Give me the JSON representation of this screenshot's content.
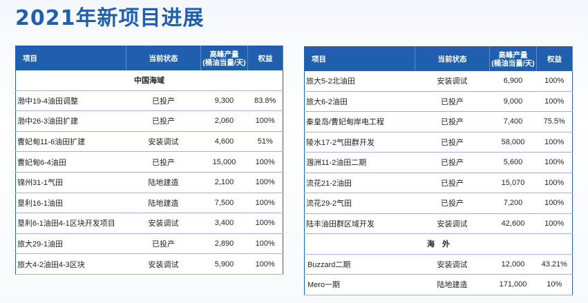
{
  "title": "2021年新项目进展",
  "headers": [
    "项目",
    "当前状态",
    "高峰产量\n(桶油当量/天)",
    "权益"
  ],
  "left_table": {
    "section": "中国海域",
    "rows": [
      {
        "name": "渤中19-4油田调整",
        "status": "已投产",
        "output": "9,300",
        "equity": "83.8%"
      },
      {
        "name": "渤中26-3油田扩建",
        "status": "已投产",
        "output": "2,060",
        "equity": "100%"
      },
      {
        "name": "曹妃甸11-6油田扩建",
        "status": "安装调试",
        "output": "4,600",
        "equity": "51%"
      },
      {
        "name": "曹妃甸6-4油田",
        "status": "已投产",
        "output": "15,000",
        "equity": "100%"
      },
      {
        "name": "锦州31-1气田",
        "status": "陆地建造",
        "output": "2,100",
        "equity": "100%"
      },
      {
        "name": "垦利16-1油田",
        "status": "陆地建造",
        "output": "7,500",
        "equity": "100%"
      },
      {
        "name": "垦利6-1油田4-1区块开发项目",
        "status": "安装调试",
        "output": "3,400",
        "equity": "100%"
      },
      {
        "name": "旅大29-1油田",
        "status": "已投产",
        "output": "2,890",
        "equity": "100%"
      },
      {
        "name": "旅大4-2油田4-3区块",
        "status": "安装调试",
        "output": "5,900",
        "equity": "100%"
      }
    ]
  },
  "right_table": {
    "rows": [
      {
        "name": "旅大5-2北油田",
        "status": "安装调试",
        "output": "6,900",
        "equity": "100%"
      },
      {
        "name": "旅大6-2油田",
        "status": "已投产",
        "output": "9,000",
        "equity": "100%"
      },
      {
        "name": "秦皇岛/曹妃甸岸电工程",
        "status": "已投产",
        "output": "7,400",
        "equity": "75.5%"
      },
      {
        "name": "陵水17-2气田群开发",
        "status": "已投产",
        "output": "58,000",
        "equity": "100%"
      },
      {
        "name": "涠洲11-2油田二期",
        "status": "已投产",
        "output": "5,600",
        "equity": "100%"
      },
      {
        "name": "流花21-2油田",
        "status": "已投产",
        "output": "15,070",
        "equity": "100%"
      },
      {
        "name": "流花29-2气田",
        "status": "已投产",
        "output": "7,200",
        "equity": "100%"
      },
      {
        "name": "陆丰油田群区域开发",
        "status": "安装调试",
        "output": "42,600",
        "equity": "100%"
      }
    ],
    "section": "海　外",
    "overseas_rows": [
      {
        "name": "Buzzard二期",
        "status": "安装调试",
        "output": "12,000",
        "equity": "43.21%"
      },
      {
        "name": "Mero一期",
        "status": "陆地建造",
        "output": "171,000",
        "equity": "10%"
      }
    ]
  }
}
